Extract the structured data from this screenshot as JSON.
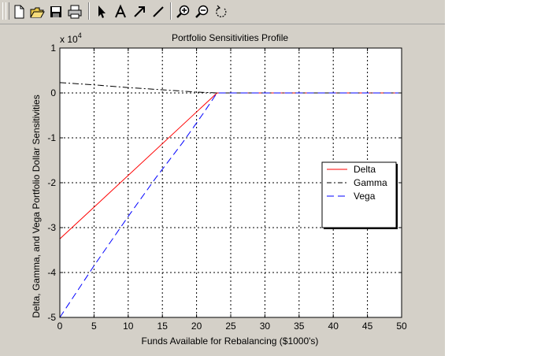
{
  "toolbar": {
    "buttons": [
      {
        "name": "new-figure",
        "icon": "new-file-icon"
      },
      {
        "name": "open-file",
        "icon": "open-folder-icon"
      },
      {
        "name": "save-figure",
        "icon": "save-disk-icon"
      },
      {
        "name": "print-figure",
        "icon": "printer-icon"
      },
      {
        "name": "edit-plot",
        "icon": "arrow-pointer-icon"
      },
      {
        "name": "insert-text",
        "icon": "text-A-icon"
      },
      {
        "name": "insert-arrow",
        "icon": "arrow-diagonal-icon"
      },
      {
        "name": "insert-line",
        "icon": "line-diagonal-icon"
      },
      {
        "name": "zoom-in",
        "icon": "zoom-in-icon"
      },
      {
        "name": "zoom-out",
        "icon": "zoom-out-icon"
      },
      {
        "name": "rotate-3d",
        "icon": "rotate-icon"
      }
    ]
  },
  "colors": {
    "window_bg": "#d4d0c8",
    "axes_bg": "#ffffff",
    "delta": "#ff0000",
    "gamma": "#000000",
    "vega": "#0000ff"
  },
  "chart_data": {
    "type": "line",
    "title": "Portfolio Sensitivities Profile",
    "xlabel": "Funds Available for Rebalancing ($1000's)",
    "ylabel": "Delta, Gamma, and Vega Portfolio Dollar Sensitivities",
    "y_exponent_label": "x 10",
    "y_exponent": "4",
    "xlim": [
      0,
      50
    ],
    "ylim": [
      -5,
      1
    ],
    "y_scale_note": "values in units of 10^4",
    "xticks": [
      0,
      5,
      10,
      15,
      20,
      25,
      30,
      35,
      40,
      45,
      50
    ],
    "yticks": [
      1,
      0,
      -1,
      -2,
      -3,
      -4,
      -5
    ],
    "grid": true,
    "legend_position": "right-center",
    "series": [
      {
        "name": "Delta",
        "color": "#ff0000",
        "style": "solid",
        "x": [
          0,
          23,
          50
        ],
        "y": [
          -3.25,
          0,
          0
        ]
      },
      {
        "name": "Gamma",
        "color": "#000000",
        "style": "dashdot",
        "x": [
          0,
          5,
          10,
          15,
          20,
          23,
          50
        ],
        "y": [
          0.23,
          0.18,
          0.12,
          0.07,
          0.02,
          0,
          0
        ]
      },
      {
        "name": "Vega",
        "color": "#0000ff",
        "style": "dashed",
        "x": [
          0,
          5,
          10,
          14,
          18,
          21,
          23,
          50
        ],
        "y": [
          -5,
          -3.85,
          -2.75,
          -1.9,
          -1.1,
          -0.45,
          0,
          0
        ]
      }
    ]
  }
}
